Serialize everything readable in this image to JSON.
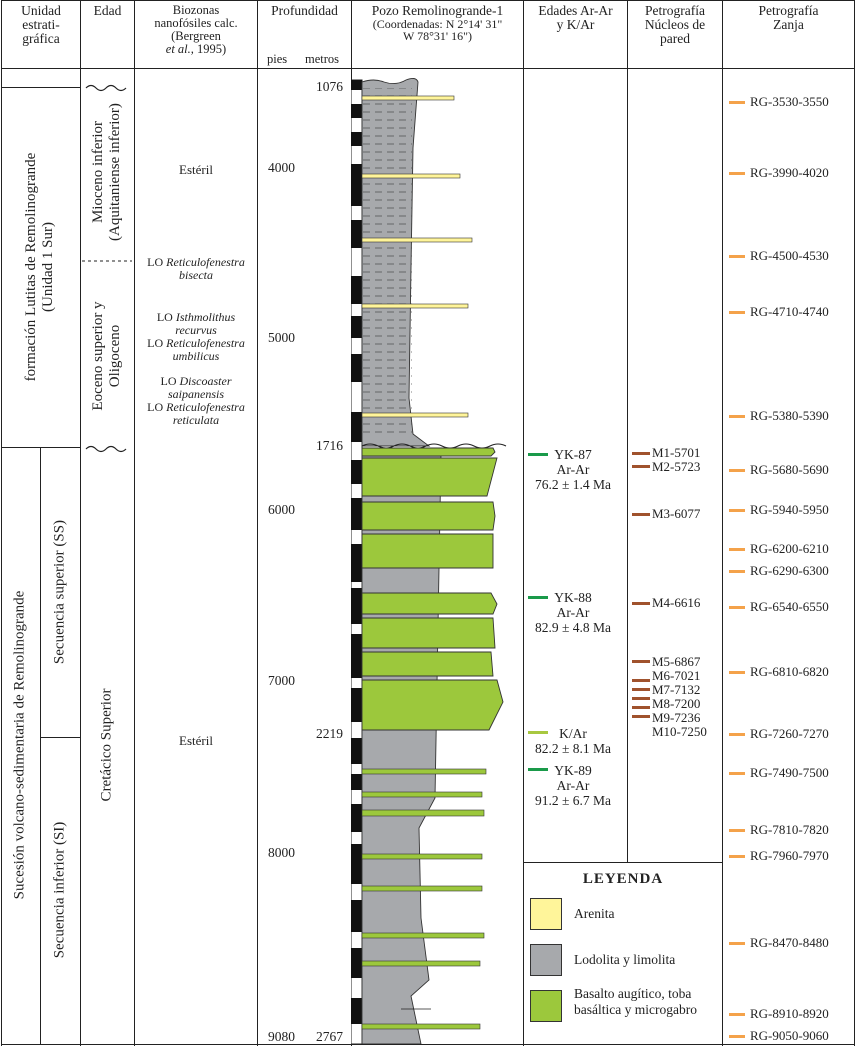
{
  "headers": {
    "unidad": [
      "Unidad",
      "estrati-",
      "gráfica"
    ],
    "edad": "Edad",
    "biozonas": [
      "Biozonas",
      "nanofósiles calc.",
      "(Bergreen"
    ],
    "biozonas_cite_italic": "et al.,",
    "biozonas_cite_year": "1995)",
    "profundidad": "Profundidad",
    "pies": "pies",
    "metros": "metros",
    "pozo": "Pozo Remolinogrande-1",
    "coords": [
      "(Coordenadas: N 2°14' 31\"",
      "W 78°31' 16\")"
    ],
    "edades": [
      "Edades Ar-Ar",
      "y K/Ar"
    ],
    "petro_nucleos": [
      "Petrografía",
      "Núcleos de",
      "pared"
    ],
    "petro_zanja": [
      "Petrografía",
      "Zanja"
    ]
  },
  "units": {
    "formation": [
      "formación Lutitas de Remolinogrande",
      "(Unidad 1 Sur)"
    ],
    "sucesion": "Sucesión volcano-sedimentaria de Remolinogrande",
    "ss": "Secuencia superior (SS)",
    "si": "Secuencia inferior (SI)"
  },
  "ages": {
    "mioceno": [
      "Mioceno inferior",
      "(Aquitaniense inferior)"
    ],
    "eoceno": [
      "Eoceno superior y",
      "Oligoceno"
    ],
    "cretacico": "Cretácico Superior"
  },
  "biozones": {
    "esteril_upper": "Estéril",
    "esteril_lower": "Estéril",
    "events": [
      {
        "prefix": "LO",
        "name": "Reticulofenestra bisecta"
      },
      {
        "prefix": "LO",
        "name": "Isthmolithus recurvus"
      },
      {
        "prefix": "LO",
        "name": "Reticulofenestra umbilicus"
      },
      {
        "prefix": "LO",
        "name": "Discoaster saipanensis"
      },
      {
        "prefix": "LO",
        "name": "Reticulofenestra reticulata"
      }
    ]
  },
  "depth": {
    "feet": [
      "4000",
      "5000",
      "6000",
      "7000",
      "8000",
      "9080"
    ],
    "metres": [
      "1076",
      "1716",
      "2219",
      "2767"
    ]
  },
  "dating": [
    {
      "id": "YK-87",
      "method": "Ar-Ar",
      "age": "76.2 ± 1.4 Ma",
      "color": "#1a9a4a"
    },
    {
      "id": "YK-88",
      "method": "Ar-Ar",
      "age": "82.9 ± 4.8 Ma",
      "color": "#1a9a4a"
    },
    {
      "id": "",
      "method": "K/Ar",
      "age": "82.2 ± 8.1 Ma",
      "color": "#a8c840"
    },
    {
      "id": "YK-89",
      "method": "Ar-Ar",
      "age": "91.2 ± 6.7 Ma",
      "color": "#1a9a4a"
    }
  ],
  "cores": [
    "M1-5701",
    "M2-5723",
    "M3-6077",
    "M4-6616",
    "M5-6867",
    "M6-7021",
    "M7-7132",
    "M8-7200",
    "M9-7236",
    "M10-7250"
  ],
  "trench": [
    "RG-3530-3550",
    "RG-3990-4020",
    "RG-4500-4530",
    "RG-4710-4740",
    "RG-5380-5390",
    "RG-5680-5690",
    "RG-5940-5950",
    "RG-6200-6210",
    "RG-6290-6300",
    "RG-6540-6550",
    "RG-6810-6820",
    "RG-7260-7270",
    "RG-7490-7500",
    "RG-7810-7820",
    "RG-7960-7970",
    "RG-8470-8480",
    "RG-8910-8920",
    "RG-9050-9060"
  ],
  "legend": {
    "title": "LEYENDA",
    "items": [
      {
        "label": "Arenita",
        "color": "#fff59a"
      },
      {
        "label": "Lodolita y limolita",
        "color": "#a7a9ac"
      },
      {
        "label": "Basalto augítico, toba basáltica y microgabro",
        "color": "#9cc83c"
      }
    ]
  },
  "colors": {
    "core_marker": "#a0522d",
    "trench_marker": "#f4a24a",
    "mud": "#a7a9ac",
    "sand": "#fff59a",
    "basalt": "#9cc83c"
  }
}
